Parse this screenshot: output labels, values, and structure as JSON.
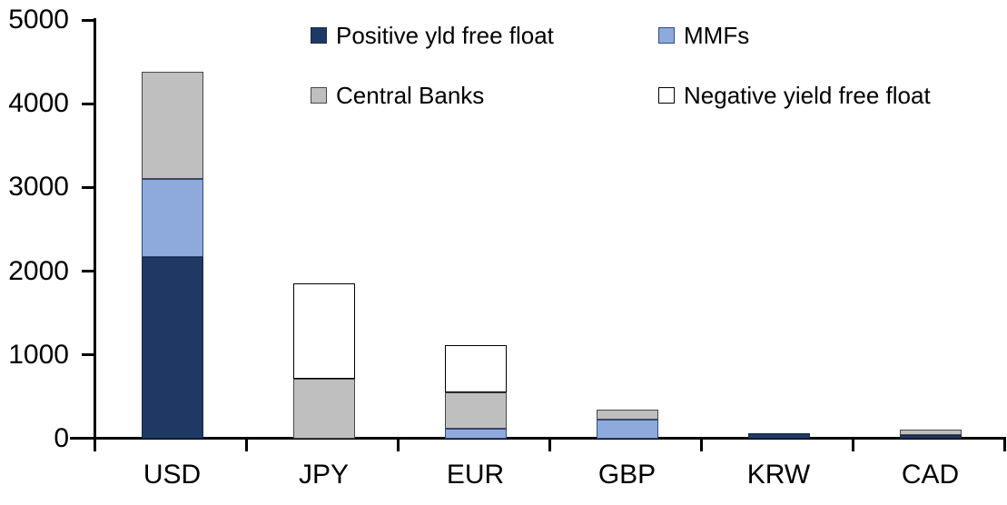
{
  "chart_data": {
    "type": "bar",
    "stacked": true,
    "title": "",
    "xlabel": "",
    "ylabel": "",
    "categories": [
      "USD",
      "JPY",
      "EUR",
      "GBP",
      "KRW",
      "CAD"
    ],
    "series": [
      {
        "name": "Positive yld free float",
        "color": "#1F3864",
        "border_color": "#16294A",
        "values": [
          2170,
          0,
          0,
          0,
          60,
          40
        ]
      },
      {
        "name": "MMFs",
        "color": "#8EA9DB",
        "border_color": "#2E4C7E",
        "values": [
          935,
          0,
          120,
          230,
          0,
          0
        ]
      },
      {
        "name": "Central Banks",
        "color": "#BFBFBF",
        "border_color": "#474747",
        "values": [
          1280,
          715,
          435,
          120,
          0,
          70
        ]
      },
      {
        "name": "Negative yield free float",
        "color": "#FFFFFF",
        "border_color": "#000000",
        "values": [
          0,
          1140,
          565,
          0,
          0,
          0
        ]
      }
    ],
    "totals": {
      "USD": 4385,
      "JPY": 1855,
      "EUR": 1120,
      "GBP": 350,
      "KRW": 60,
      "CAD": 110
    },
    "ylim": [
      0,
      5000
    ],
    "yticks": [
      "0",
      "1000",
      "2000",
      "3000",
      "4000",
      "5000"
    ],
    "grid": false,
    "legend_position": "top",
    "legend_columns": 2,
    "axis_color": "#000000",
    "text_color": "#000000",
    "background_color": "#FFFFFF"
  }
}
